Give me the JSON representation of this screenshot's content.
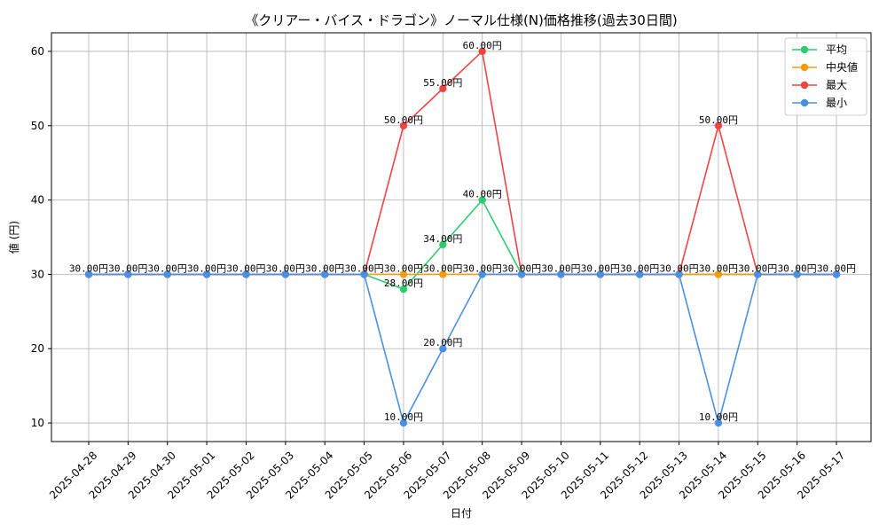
{
  "chart_data": {
    "type": "line",
    "title": "《クリアー・バイス・ドラゴン》ノーマル仕様(N)価格推移(過去30日間)",
    "xlabel": "日付",
    "ylabel": "値 (円)",
    "ylim": [
      7.5,
      62.5
    ],
    "yticks": [
      10,
      20,
      30,
      40,
      50,
      60
    ],
    "grid": true,
    "legend_position": "top-right",
    "categories": [
      "2025-04-28",
      "2025-04-29",
      "2025-04-30",
      "2025-05-01",
      "2025-05-02",
      "2025-05-03",
      "2025-05-04",
      "2025-05-05",
      "2025-05-06",
      "2025-05-07",
      "2025-05-08",
      "2025-05-09",
      "2025-05-10",
      "2025-05-11",
      "2025-05-12",
      "2025-05-13",
      "2025-05-14",
      "2025-05-15",
      "2025-05-16",
      "2025-05-17"
    ],
    "series": [
      {
        "name": "平均",
        "color": "#2ecc71",
        "values": [
          30,
          30,
          30,
          30,
          30,
          30,
          30,
          30,
          28,
          34,
          40,
          30,
          30,
          30,
          30,
          30,
          30,
          30,
          30,
          30
        ],
        "label_indices": [
          8,
          9,
          10
        ]
      },
      {
        "name": "中央値",
        "color": "#f39c12",
        "values": [
          30,
          30,
          30,
          30,
          30,
          30,
          30,
          30,
          30,
          30,
          30,
          30,
          30,
          30,
          30,
          30,
          30,
          30,
          30,
          30
        ],
        "label_indices": [
          8,
          9,
          16
        ]
      },
      {
        "name": "最大",
        "color": "#ef4444",
        "values": [
          30,
          30,
          30,
          30,
          30,
          30,
          30,
          30,
          50,
          55,
          60,
          30,
          30,
          30,
          30,
          30,
          50,
          30,
          30,
          30
        ],
        "label_indices": [
          8,
          9,
          10,
          16
        ]
      },
      {
        "name": "最小",
        "color": "#4a90e2",
        "values": [
          30,
          30,
          30,
          30,
          30,
          30,
          30,
          30,
          10,
          20,
          30,
          30,
          30,
          30,
          30,
          30,
          10,
          30,
          30,
          30
        ],
        "label_indices": [
          0,
          1,
          2,
          3,
          4,
          5,
          6,
          7,
          8,
          9,
          10,
          11,
          12,
          13,
          14,
          15,
          16,
          17,
          18,
          19
        ]
      }
    ],
    "label_suffix": "円"
  }
}
